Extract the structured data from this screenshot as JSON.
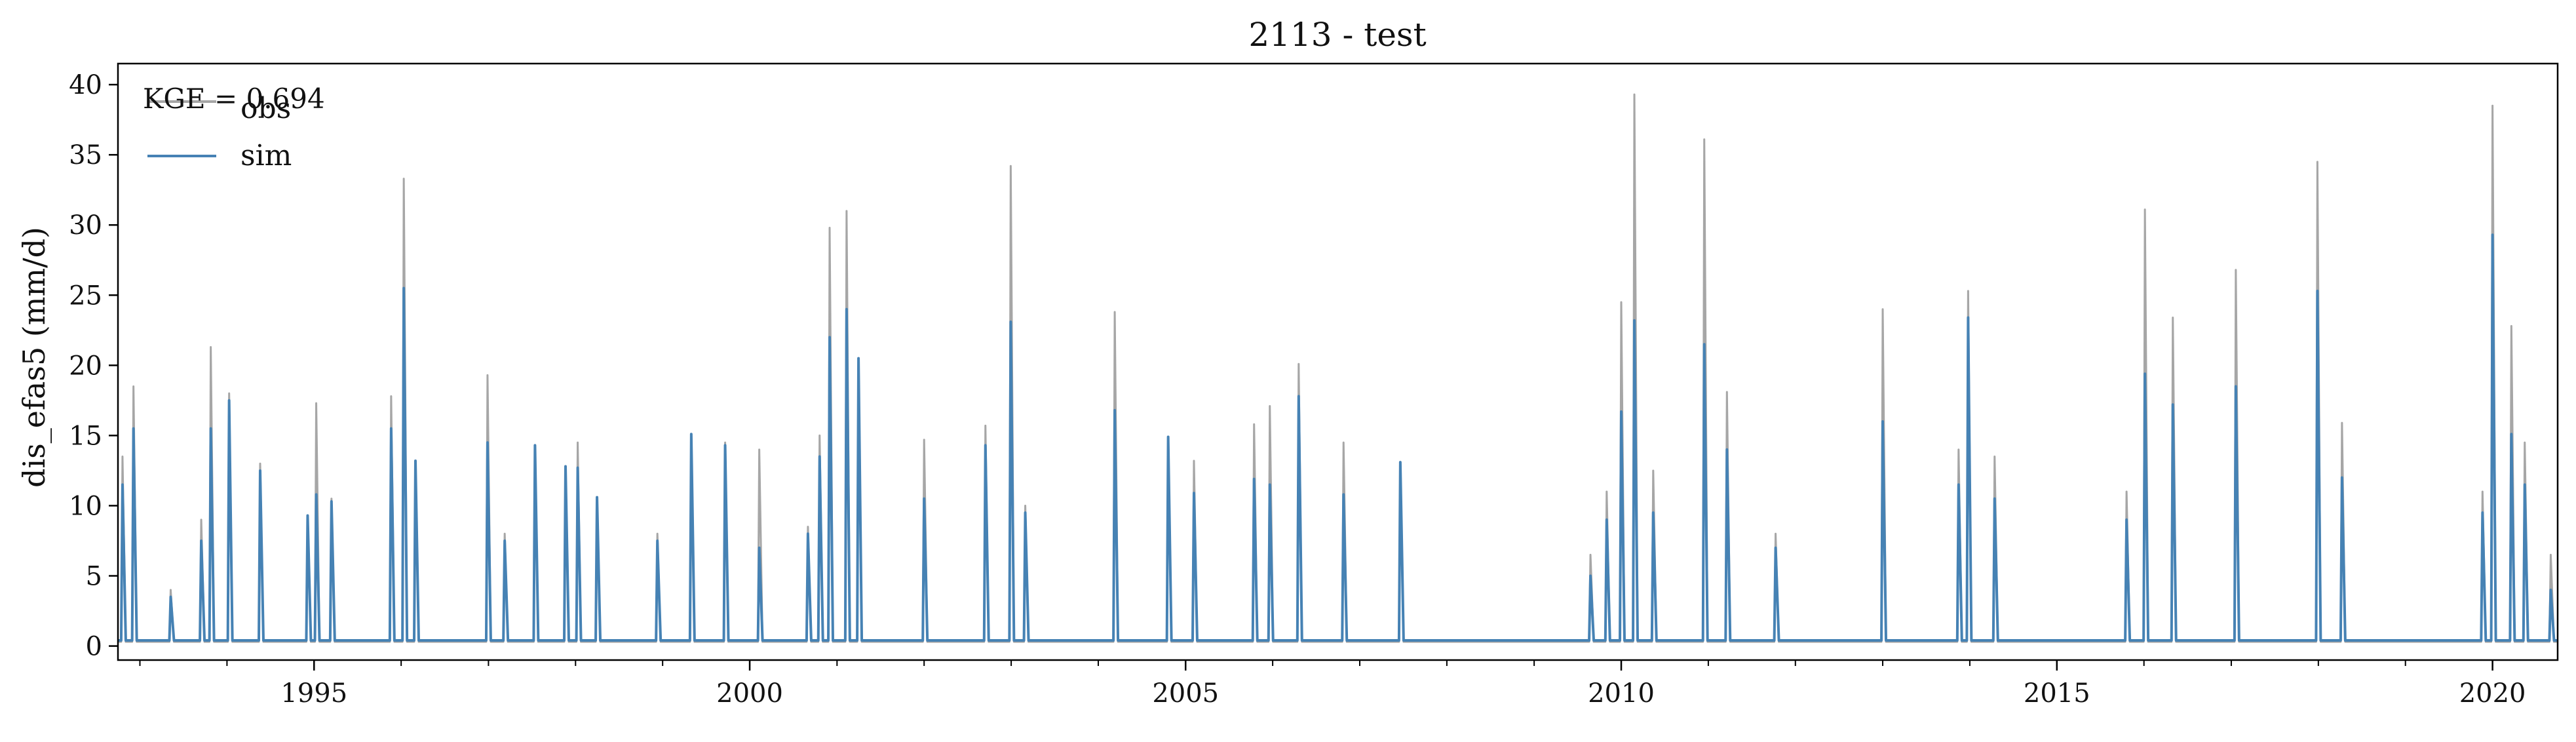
{
  "chart_data": {
    "type": "line",
    "title": "2113 - test",
    "xlabel": "",
    "ylabel": "dis_efas5 (mm/d)",
    "annotation": "KGE = 0.694",
    "xlim": [
      "1992-10-01",
      "2020-09-30"
    ],
    "ylim": [
      -1,
      41.5
    ],
    "yticks": [
      0,
      5,
      10,
      15,
      20,
      25,
      30,
      35,
      40
    ],
    "xticks": [
      "1995",
      "2000",
      "2005",
      "2010",
      "2015",
      "2020"
    ],
    "grid": false,
    "legend": {
      "placement": "top-left",
      "entries": [
        "obs",
        "sim"
      ]
    },
    "colors": {
      "obs": "#a6a6a6",
      "sim": "#4682b4",
      "axis": "#000000"
    },
    "series": [
      {
        "name": "obs",
        "baseline": 0.3,
        "peaks": [
          [
            "1992-10-20",
            13.5
          ],
          [
            "1992-12-05",
            18.5
          ],
          [
            "1993-05-10",
            4.0
          ],
          [
            "1993-09-15",
            9.0
          ],
          [
            "1993-10-25",
            21.3
          ],
          [
            "1994-01-10",
            18.0
          ],
          [
            "1994-05-20",
            13.0
          ],
          [
            "1994-12-05",
            9.0
          ],
          [
            "1995-01-10",
            17.3
          ],
          [
            "1995-03-15",
            10.5
          ],
          [
            "1995-11-20",
            17.8
          ],
          [
            "1996-01-12",
            33.3
          ],
          [
            "1996-03-01",
            13.0
          ],
          [
            "1996-12-28",
            19.3
          ],
          [
            "1997-03-10",
            8.0
          ],
          [
            "1997-07-15",
            14.0
          ],
          [
            "1997-11-20",
            12.5
          ],
          [
            "1998-01-10",
            14.5
          ],
          [
            "1998-04-01",
            10.5
          ],
          [
            "1998-12-10",
            8.0
          ],
          [
            "1999-05-01",
            15.0
          ],
          [
            "1999-09-20",
            14.5
          ],
          [
            "2000-02-10",
            14.0
          ],
          [
            "2000-09-01",
            8.5
          ],
          [
            "2000-10-20",
            15.0
          ],
          [
            "2000-12-01",
            29.8
          ],
          [
            "2001-02-10",
            31.0
          ],
          [
            "2001-04-01",
            20.5
          ],
          [
            "2002-01-01",
            14.7
          ],
          [
            "2002-09-15",
            15.7
          ],
          [
            "2002-12-30",
            34.2
          ],
          [
            "2003-03-01",
            10.0
          ],
          [
            "2004-03-10",
            23.8
          ],
          [
            "2004-10-20",
            14.8
          ],
          [
            "2005-02-05",
            13.2
          ],
          [
            "2005-10-15",
            15.8
          ],
          [
            "2005-12-20",
            17.1
          ],
          [
            "2006-04-20",
            20.1
          ],
          [
            "2006-10-25",
            14.5
          ],
          [
            "2007-06-20",
            13.1
          ],
          [
            "2009-08-25",
            6.5
          ],
          [
            "2009-11-01",
            11.0
          ],
          [
            "2010-01-01",
            24.5
          ],
          [
            "2010-02-25",
            39.3
          ],
          [
            "2010-05-15",
            12.5
          ],
          [
            "2010-12-15",
            36.1
          ],
          [
            "2011-03-20",
            18.1
          ],
          [
            "2011-10-10",
            8.0
          ],
          [
            "2013-01-01",
            24.0
          ],
          [
            "2013-11-15",
            14.0
          ],
          [
            "2013-12-25",
            25.3
          ],
          [
            "2014-04-15",
            13.5
          ],
          [
            "2015-10-20",
            11.0
          ],
          [
            "2016-01-05",
            31.1
          ],
          [
            "2016-05-01",
            23.4
          ],
          [
            "2017-01-20",
            26.8
          ],
          [
            "2017-12-28",
            34.5
          ],
          [
            "2018-04-10",
            15.9
          ],
          [
            "2019-11-20",
            11.0
          ],
          [
            "2020-01-01",
            38.5
          ],
          [
            "2020-03-20",
            22.8
          ],
          [
            "2020-05-15",
            14.5
          ],
          [
            "2020-09-01",
            6.5
          ]
        ]
      },
      {
        "name": "sim",
        "baseline": 0.4,
        "peaks": [
          [
            "1992-10-20",
            11.5
          ],
          [
            "1992-12-05",
            15.5
          ],
          [
            "1993-05-10",
            3.5
          ],
          [
            "1993-09-15",
            7.5
          ],
          [
            "1993-10-25",
            15.5
          ],
          [
            "1994-01-10",
            17.5
          ],
          [
            "1994-05-20",
            12.5
          ],
          [
            "1994-12-05",
            9.3
          ],
          [
            "1995-01-10",
            10.8
          ],
          [
            "1995-03-15",
            10.3
          ],
          [
            "1995-11-20",
            15.5
          ],
          [
            "1996-01-12",
            25.5
          ],
          [
            "1996-03-01",
            13.2
          ],
          [
            "1996-12-28",
            14.5
          ],
          [
            "1997-03-10",
            7.5
          ],
          [
            "1997-07-15",
            14.3
          ],
          [
            "1997-11-20",
            12.8
          ],
          [
            "1998-01-10",
            12.7
          ],
          [
            "1998-04-01",
            10.6
          ],
          [
            "1998-12-10",
            7.5
          ],
          [
            "1999-05-01",
            15.1
          ],
          [
            "1999-09-20",
            14.3
          ],
          [
            "2000-02-10",
            7.0
          ],
          [
            "2000-09-01",
            8.0
          ],
          [
            "2000-10-20",
            13.5
          ],
          [
            "2000-12-01",
            22.0
          ],
          [
            "2001-02-10",
            24.0
          ],
          [
            "2001-04-01",
            20.5
          ],
          [
            "2002-01-01",
            10.5
          ],
          [
            "2002-09-15",
            14.3
          ],
          [
            "2002-12-30",
            23.1
          ],
          [
            "2003-03-01",
            9.5
          ],
          [
            "2004-03-10",
            16.8
          ],
          [
            "2004-10-20",
            14.9
          ],
          [
            "2005-02-05",
            10.9
          ],
          [
            "2005-10-15",
            11.9
          ],
          [
            "2005-12-20",
            11.5
          ],
          [
            "2006-04-20",
            17.8
          ],
          [
            "2006-10-25",
            10.8
          ],
          [
            "2007-06-20",
            13.1
          ],
          [
            "2009-08-25",
            5.0
          ],
          [
            "2009-11-01",
            9.0
          ],
          [
            "2010-01-01",
            16.7
          ],
          [
            "2010-02-25",
            23.2
          ],
          [
            "2010-05-15",
            9.5
          ],
          [
            "2010-12-15",
            21.5
          ],
          [
            "2011-03-20",
            14.0
          ],
          [
            "2011-10-10",
            7.0
          ],
          [
            "2013-01-01",
            16.0
          ],
          [
            "2013-11-15",
            11.5
          ],
          [
            "2013-12-25",
            23.4
          ],
          [
            "2014-04-15",
            10.5
          ],
          [
            "2015-10-20",
            9.0
          ],
          [
            "2016-01-05",
            19.4
          ],
          [
            "2016-05-01",
            17.2
          ],
          [
            "2017-01-20",
            18.5
          ],
          [
            "2017-12-28",
            25.3
          ],
          [
            "2018-04-10",
            12.0
          ],
          [
            "2019-11-20",
            9.5
          ],
          [
            "2020-01-01",
            29.3
          ],
          [
            "2020-03-20",
            15.1
          ],
          [
            "2020-05-15",
            11.5
          ],
          [
            "2020-09-01",
            4.0
          ]
        ]
      }
    ]
  }
}
